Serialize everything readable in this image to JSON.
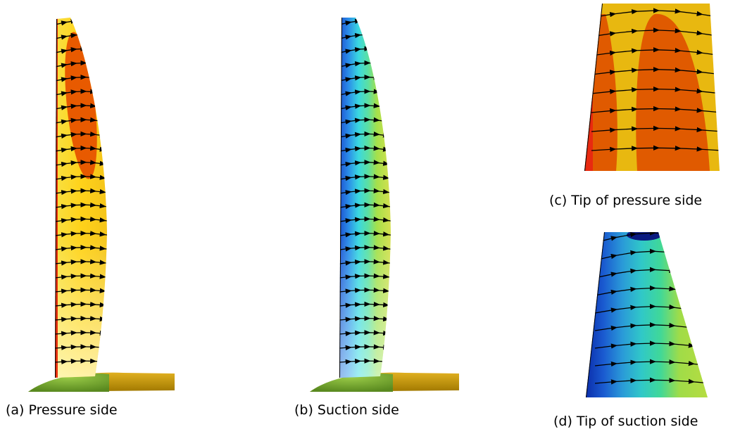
{
  "subfigures": [
    {
      "caption": "(a) Pressure side"
    },
    {
      "caption": "(b) Suction side"
    },
    {
      "caption": "(c) Tip of pressure side"
    },
    {
      "caption": "(d) Tip of suction side"
    }
  ]
}
